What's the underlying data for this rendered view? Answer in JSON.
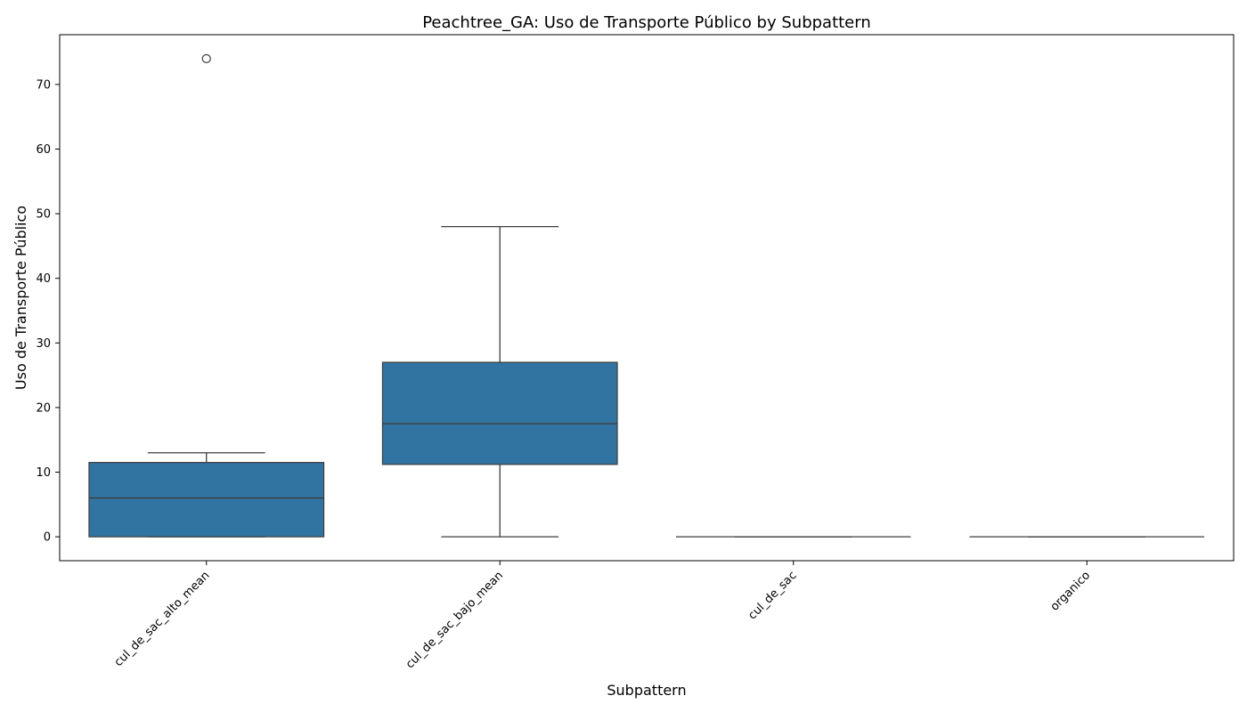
{
  "chart_data": {
    "type": "box",
    "title": "Peachtree_GA: Uso de Transporte Público by Subpattern",
    "xlabel": "Subpattern",
    "ylabel": "Uso de Transporte Público",
    "ylim": [
      -3.7,
      77.7
    ],
    "yticks": [
      0,
      10,
      20,
      30,
      40,
      50,
      60,
      70
    ],
    "grid": false,
    "box_color": "#3274a1",
    "categories": [
      "cul_de_sac_alto_mean",
      "cul_de_sac_bajo_mean",
      "cul_de_sac",
      "organico"
    ],
    "boxes": [
      {
        "category": "cul_de_sac_alto_mean",
        "whislo": 0,
        "q1": 0,
        "median": 6,
        "q3": 11.5,
        "whishi": 13,
        "fliers": [
          74
        ]
      },
      {
        "category": "cul_de_sac_bajo_mean",
        "whislo": 0,
        "q1": 11.2,
        "median": 17.5,
        "q3": 27,
        "whishi": 48,
        "fliers": []
      },
      {
        "category": "cul_de_sac",
        "whislo": 0,
        "q1": 0,
        "median": 0,
        "q3": 0,
        "whishi": 0,
        "fliers": []
      },
      {
        "category": "organico",
        "whislo": 0,
        "q1": 0,
        "median": 0,
        "q3": 0,
        "whishi": 0,
        "fliers": []
      }
    ]
  }
}
